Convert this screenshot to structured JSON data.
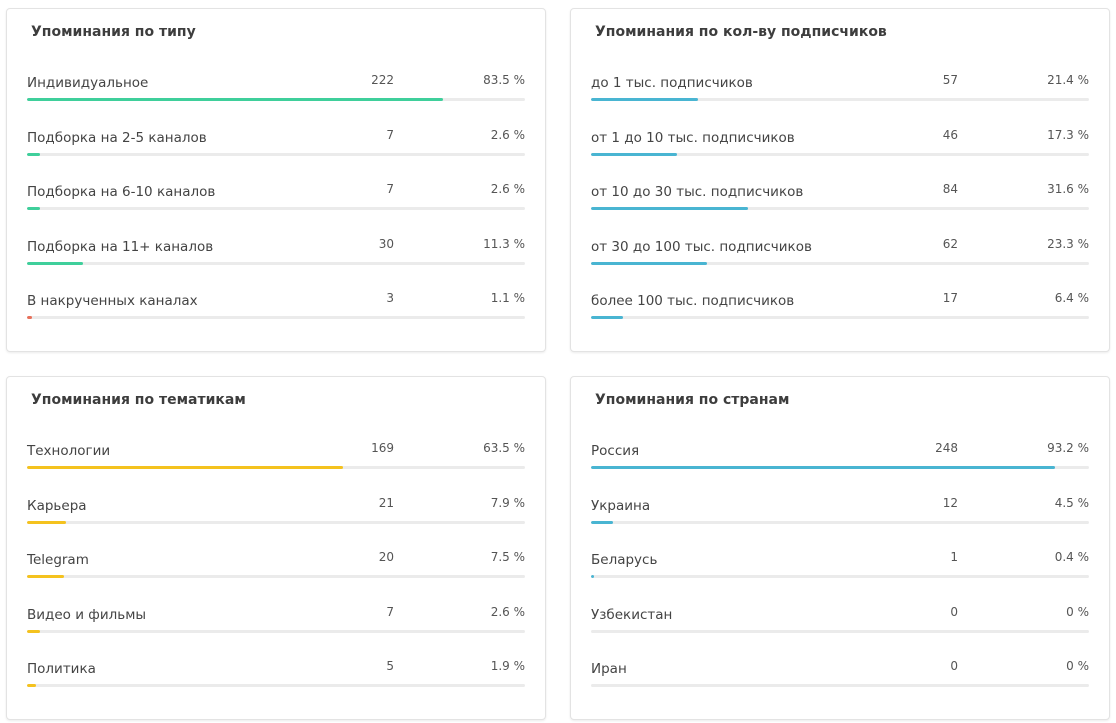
{
  "colors": {
    "green": "#3fcf9b",
    "red": "#e8705a",
    "blue": "#49b5d2",
    "yellow": "#f4c21e",
    "track": "#ebebeb"
  },
  "cards": [
    {
      "title": "Упоминания по типу",
      "rows": [
        {
          "label": "Индивидуальное",
          "count": "222",
          "pct": "83.5 %",
          "fraction": 0.835,
          "color": "green"
        },
        {
          "label": "Подборка на 2-5 каналов",
          "count": "7",
          "pct": "2.6 %",
          "fraction": 0.026,
          "color": "green"
        },
        {
          "label": "Подборка на 6-10 каналов",
          "count": "7",
          "pct": "2.6 %",
          "fraction": 0.026,
          "color": "green"
        },
        {
          "label": "Подборка на 11+ каналов",
          "count": "30",
          "pct": "11.3 %",
          "fraction": 0.113,
          "color": "green"
        },
        {
          "label": "В накрученных каналах",
          "count": "3",
          "pct": "1.1 %",
          "fraction": 0.011,
          "color": "red"
        }
      ]
    },
    {
      "title": "Упоминания по кол-ву подписчиков",
      "rows": [
        {
          "label": "до 1 тыс. подписчиков",
          "count": "57",
          "pct": "21.4 %",
          "fraction": 0.214,
          "color": "blue"
        },
        {
          "label": "от 1 до 10 тыс. подписчиков",
          "count": "46",
          "pct": "17.3 %",
          "fraction": 0.173,
          "color": "blue"
        },
        {
          "label": "от 10 до 30 тыс. подписчиков",
          "count": "84",
          "pct": "31.6 %",
          "fraction": 0.316,
          "color": "blue"
        },
        {
          "label": "от 30 до 100 тыс. подписчиков",
          "count": "62",
          "pct": "23.3 %",
          "fraction": 0.233,
          "color": "blue"
        },
        {
          "label": "более 100 тыс. подписчиков",
          "count": "17",
          "pct": "6.4 %",
          "fraction": 0.064,
          "color": "blue"
        }
      ]
    },
    {
      "title": "Упоминания по тематикам",
      "rows": [
        {
          "label": "Технологии",
          "count": "169",
          "pct": "63.5 %",
          "fraction": 0.635,
          "color": "yellow"
        },
        {
          "label": "Карьера",
          "count": "21",
          "pct": "7.9 %",
          "fraction": 0.079,
          "color": "yellow"
        },
        {
          "label": "Telegram",
          "count": "20",
          "pct": "7.5 %",
          "fraction": 0.075,
          "color": "yellow"
        },
        {
          "label": "Видео и фильмы",
          "count": "7",
          "pct": "2.6 %",
          "fraction": 0.026,
          "color": "yellow"
        },
        {
          "label": "Политика",
          "count": "5",
          "pct": "1.9 %",
          "fraction": 0.019,
          "color": "yellow"
        }
      ]
    },
    {
      "title": "Упоминания по странам",
      "rows": [
        {
          "label": "Россия",
          "count": "248",
          "pct": "93.2 %",
          "fraction": 0.932,
          "color": "blue"
        },
        {
          "label": "Украина",
          "count": "12",
          "pct": "4.5 %",
          "fraction": 0.045,
          "color": "blue"
        },
        {
          "label": "Беларусь",
          "count": "1",
          "pct": "0.4 %",
          "fraction": 0.004,
          "color": "blue"
        },
        {
          "label": "Узбекистан",
          "count": "0",
          "pct": "0 %",
          "fraction": 0,
          "color": "blue"
        },
        {
          "label": "Иран",
          "count": "0",
          "pct": "0 %",
          "fraction": 0,
          "color": "blue"
        }
      ]
    }
  ]
}
